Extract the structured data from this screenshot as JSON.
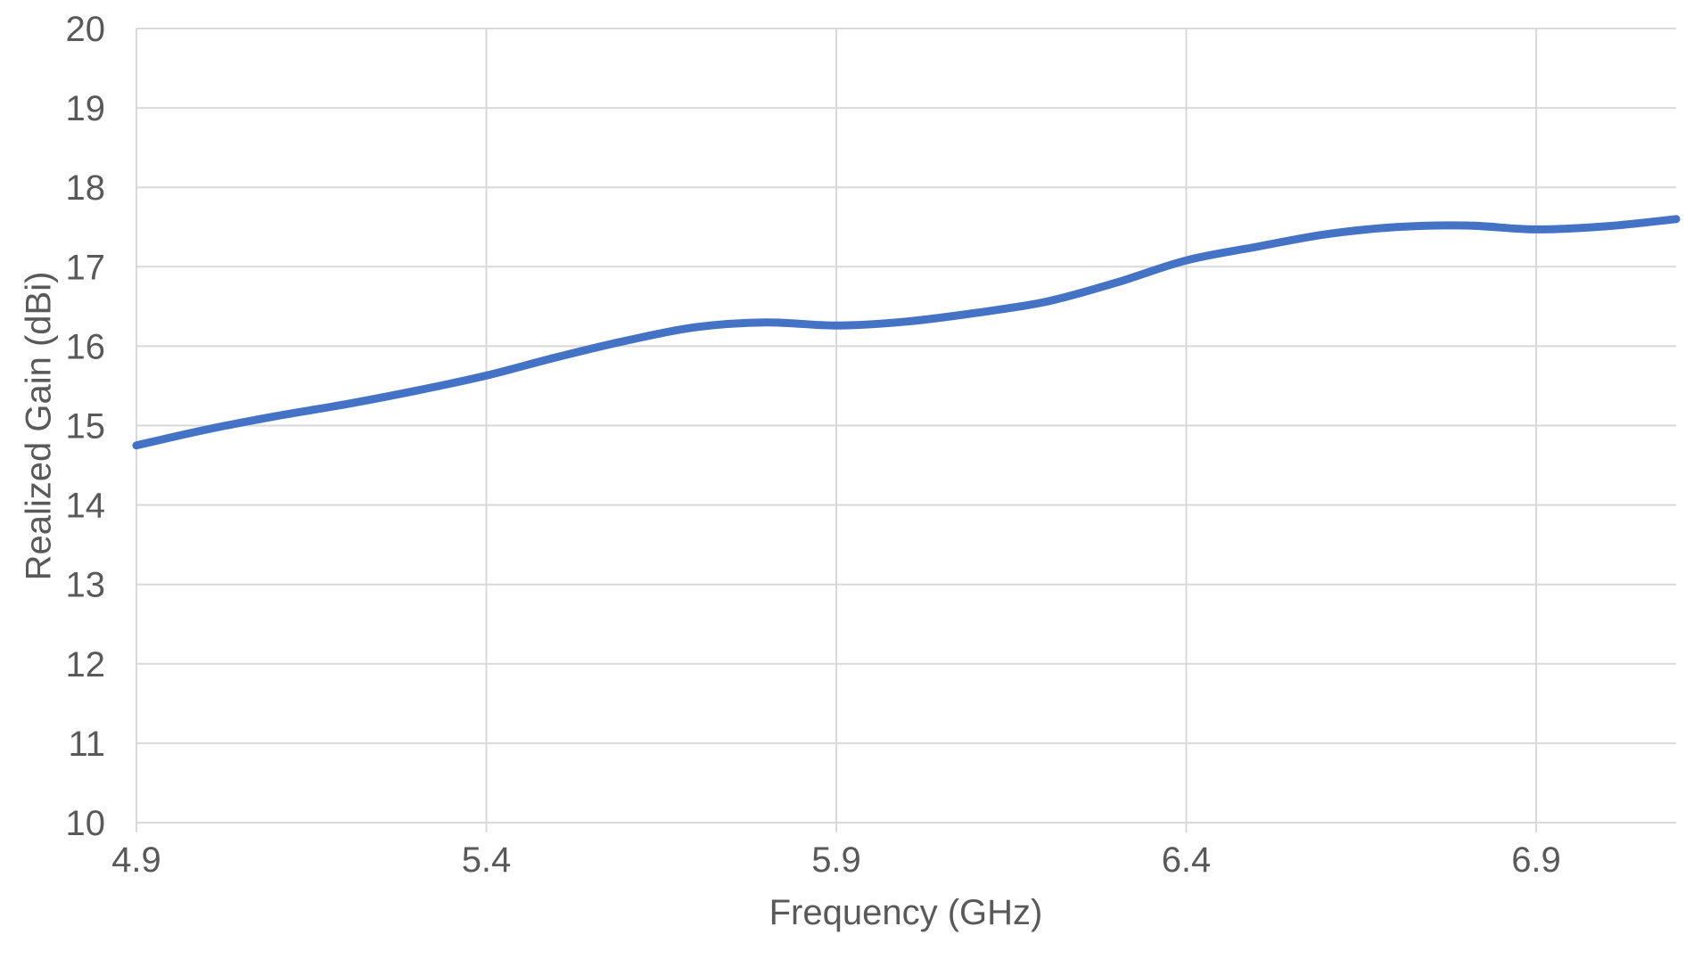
{
  "chart_data": {
    "type": "line",
    "title": "",
    "xlabel": "Frequency (GHz)",
    "ylabel": "Realized Gain (dBi)",
    "x": [
      4.9,
      5.0,
      5.1,
      5.2,
      5.3,
      5.4,
      5.5,
      5.6,
      5.7,
      5.8,
      5.9,
      6.0,
      6.1,
      6.2,
      6.3,
      6.4,
      6.5,
      6.6,
      6.7,
      6.8,
      6.9,
      7.0,
      7.1
    ],
    "values": [
      14.75,
      14.95,
      15.12,
      15.27,
      15.44,
      15.63,
      15.86,
      16.07,
      16.24,
      16.3,
      16.26,
      16.31,
      16.42,
      16.56,
      16.8,
      17.08,
      17.25,
      17.41,
      17.5,
      17.52,
      17.47,
      17.51,
      17.6
    ],
    "xlim": [
      4.9,
      7.1
    ],
    "ylim": [
      10,
      20
    ],
    "xticks": [
      4.9,
      5.4,
      5.9,
      6.4,
      6.9
    ],
    "xtick_labels": [
      "4.9",
      "5.4",
      "5.9",
      "6.4",
      "6.9"
    ],
    "yticks": [
      10,
      11,
      12,
      13,
      14,
      15,
      16,
      17,
      18,
      19,
      20
    ],
    "ytick_labels": [
      "10",
      "11",
      "12",
      "13",
      "14",
      "15",
      "16",
      "17",
      "18",
      "19",
      "20"
    ],
    "grid": true,
    "legend": "none",
    "line_color": "#4472C4",
    "grid_color": "#D9D9D9",
    "label_color": "#595959",
    "background_color": "#FFFFFF"
  }
}
